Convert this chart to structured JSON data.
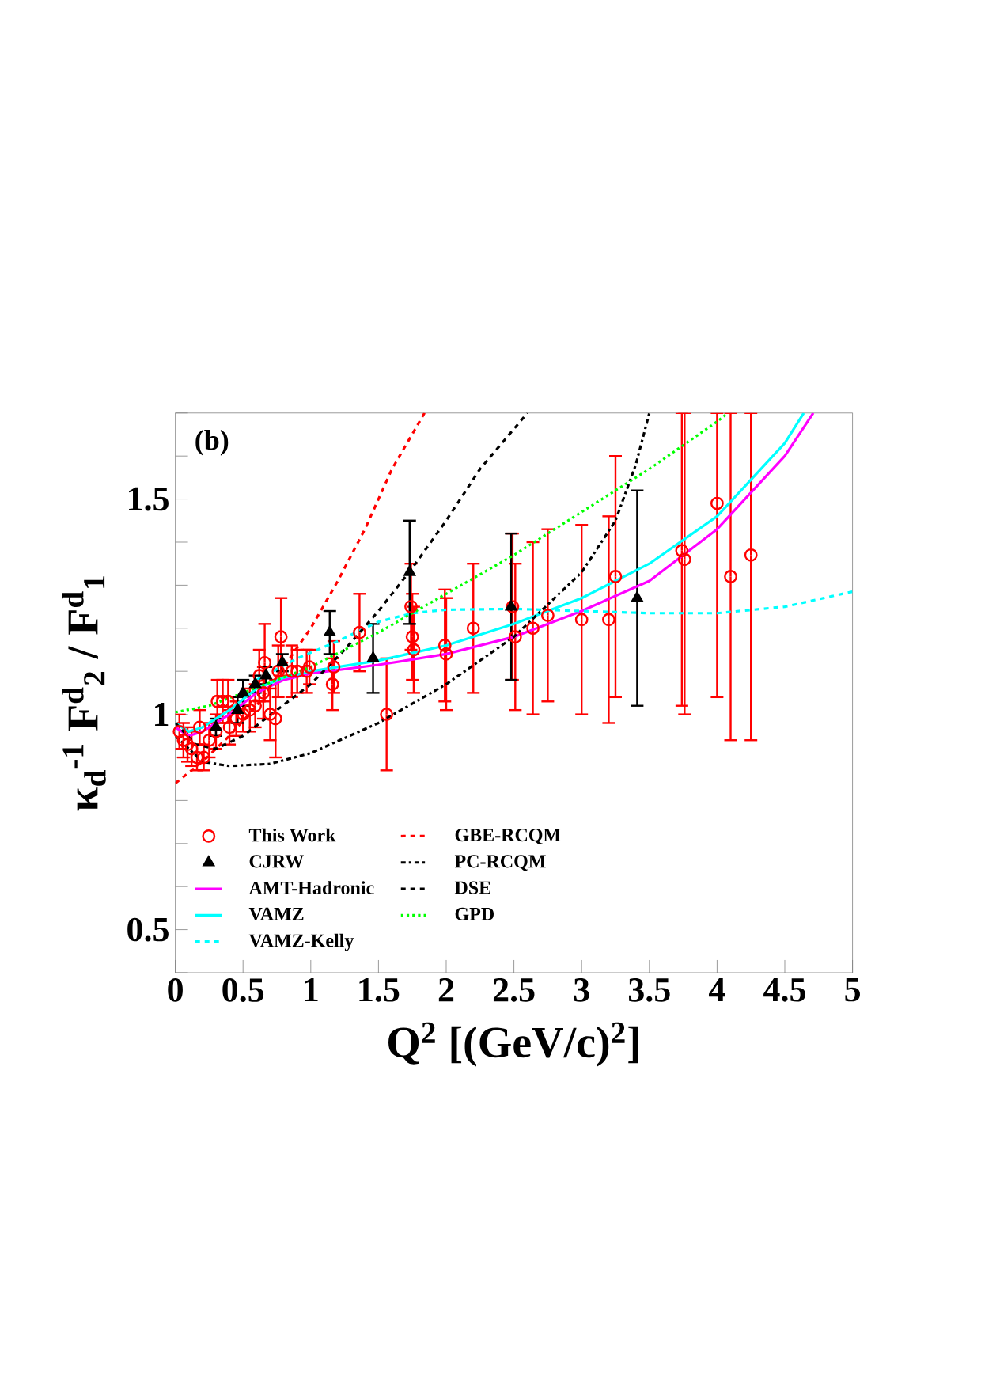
{
  "chart_data": {
    "type": "line",
    "xlabel": "Q$^{2}$ [(GeV/c)$^{2}$]",
    "ylabel": "κ$_{d}$$^{-1}$ F$^{d}$$_{2}$ / F$^{d}$$_{1}$",
    "annotations": [
      "(b)"
    ],
    "xlim": [
      0,
      5
    ],
    "ylim": [
      0.4,
      1.7
    ],
    "xticks": [
      0,
      0.5,
      1,
      1.5,
      2,
      2.5,
      3,
      3.5,
      4,
      4.5,
      5
    ],
    "yticks": [
      {
        "value": 0.4,
        "label": null
      },
      0.5,
      {
        "value": 0.6,
        "label": null
      },
      {
        "value": 0.7,
        "label": null
      },
      {
        "value": 0.8,
        "label": null
      },
      {
        "value": 0.9,
        "label": null
      },
      1,
      {
        "value": 1.1,
        "label": null
      },
      {
        "value": 1.2,
        "label": null
      },
      {
        "value": 1.3,
        "label": null
      },
      {
        "value": 1.4,
        "label": null
      },
      1.5,
      {
        "value": 1.6,
        "label": null
      },
      {
        "value": 1.7,
        "label": null
      }
    ],
    "grid": false,
    "legend": "bottom",
    "series": [
      {
        "name": "This Work",
        "type": "scatter",
        "marker": "circle",
        "color": "#ff0000",
        "x": [
          0.03,
          0.06,
          0.09,
          0.12,
          0.16,
          0.18,
          0.21,
          0.25,
          0.3,
          0.31,
          0.35,
          0.39,
          0.4,
          0.45,
          0.5,
          0.55,
          0.59,
          0.62,
          0.65,
          0.66,
          0.7,
          0.74,
          0.76,
          0.78,
          0.86,
          0.9,
          0.97,
          0.99,
          1.16,
          1.17,
          1.36,
          1.56,
          1.74,
          1.75,
          1.76,
          1.99,
          2.0,
          2.2,
          2.49,
          2.51,
          2.64,
          2.75,
          3.0,
          3.2,
          3.25,
          3.74,
          3.76,
          4.0,
          4.1,
          4.25
        ],
        "values": [
          0.96,
          0.94,
          0.93,
          0.92,
          0.9,
          0.97,
          0.9,
          0.94,
          0.96,
          1.03,
          1.03,
          1.03,
          0.97,
          0.99,
          1.0,
          1.01,
          1.02,
          1.09,
          1.05,
          1.12,
          1.0,
          0.99,
          1.1,
          1.18,
          1.1,
          1.1,
          1.1,
          1.11,
          1.07,
          1.11,
          1.19,
          1.0,
          1.25,
          1.18,
          1.15,
          1.16,
          1.14,
          1.2,
          1.25,
          1.18,
          1.2,
          1.23,
          1.22,
          1.22,
          1.32,
          1.38,
          1.36,
          1.49,
          1.32,
          1.37
        ],
        "errors": [
          0.04,
          0.04,
          0.04,
          0.04,
          0.03,
          0.04,
          0.03,
          0.04,
          0.04,
          0.05,
          0.05,
          0.05,
          0.04,
          0.04,
          0.04,
          0.05,
          0.05,
          0.06,
          0.06,
          0.09,
          0.06,
          0.09,
          0.06,
          0.09,
          0.06,
          0.05,
          0.05,
          0.04,
          0.06,
          0.06,
          0.09,
          0.13,
          0.1,
          0.1,
          0.1,
          0.13,
          0.13,
          0.15,
          0.17,
          0.17,
          0.2,
          0.2,
          0.22,
          0.24,
          0.28,
          [
            1.02,
            1.7
          ],
          [
            1.0,
            1.7
          ],
          [
            1.04,
            1.7
          ],
          [
            0.94,
            1.7
          ],
          [
            0.94,
            1.7
          ]
        ]
      },
      {
        "name": "CJRW",
        "type": "scatter",
        "marker": "triangle",
        "color": "#000000",
        "x": [
          0.3,
          0.46,
          0.5,
          0.59,
          0.67,
          0.79,
          1.14,
          1.46,
          1.73,
          2.48,
          3.41
        ],
        "values": [
          0.97,
          1.01,
          1.05,
          1.07,
          1.09,
          1.12,
          1.19,
          1.13,
          1.33,
          1.25,
          1.27
        ],
        "errors": [
          0.02,
          0.03,
          0.03,
          0.02,
          0.02,
          0.02,
          0.05,
          0.08,
          0.12,
          0.17,
          0.25
        ]
      },
      {
        "name": "AMT-Hadronic",
        "line_style": "solid",
        "color": "#ff00ff",
        "x": [
          0,
          0.1,
          0.2,
          0.4,
          0.6,
          0.8,
          1.0,
          1.5,
          2.0,
          2.5,
          3.0,
          3.5,
          4.0,
          4.5,
          4.71
        ],
        "values": [
          0.97,
          0.95,
          0.96,
          1.0,
          1.05,
          1.08,
          1.095,
          1.115,
          1.14,
          1.18,
          1.24,
          1.31,
          1.43,
          1.6,
          1.7
        ]
      },
      {
        "name": "VAMZ",
        "line_style": "solid",
        "color": "#00ffff",
        "x": [
          0,
          0.1,
          0.2,
          0.4,
          0.6,
          0.8,
          1.0,
          1.5,
          2.0,
          2.5,
          3.0,
          3.5,
          4.0,
          4.5,
          4.64
        ],
        "values": [
          0.98,
          0.96,
          0.97,
          1.01,
          1.06,
          1.085,
          1.1,
          1.125,
          1.16,
          1.21,
          1.27,
          1.35,
          1.46,
          1.63,
          1.7
        ]
      },
      {
        "name": "VAMZ-Kelly",
        "line_style": "dashed",
        "color": "#00ffff",
        "x": [
          0.6,
          0.9,
          1.2,
          1.5,
          1.75,
          2.0,
          2.5,
          3.0,
          3.5,
          4.0,
          4.5,
          5.0
        ],
        "values": [
          1.08,
          1.13,
          1.17,
          1.215,
          1.235,
          1.243,
          1.245,
          1.24,
          1.235,
          1.235,
          1.25,
          1.285
        ]
      },
      {
        "name": "GBE-RCQM",
        "line_style": "dashed",
        "color": "#ff0000",
        "x": [
          0,
          0.2,
          0.4,
          0.6,
          0.8,
          1.0,
          1.2,
          1.4,
          1.6,
          1.84
        ],
        "values": [
          0.84,
          0.89,
          0.95,
          1.02,
          1.11,
          1.2,
          1.31,
          1.43,
          1.57,
          1.7
        ]
      },
      {
        "name": "PC-RCQM",
        "line_style": "dashdotted",
        "color": "#000000",
        "x": [
          0,
          0.2,
          0.4,
          0.7,
          1.0,
          1.5,
          2.0,
          2.5,
          3.0,
          3.25,
          3.4,
          3.5
        ],
        "values": [
          0.95,
          0.89,
          0.88,
          0.885,
          0.91,
          0.98,
          1.07,
          1.18,
          1.33,
          1.45,
          1.58,
          1.7
        ]
      },
      {
        "name": "DSE",
        "line_style": "dashed",
        "color": "#000000",
        "x": [
          0,
          0.15,
          0.3,
          0.5,
          0.75,
          1.0,
          1.25,
          1.5,
          1.75,
          2.0,
          2.25,
          2.6
        ],
        "values": [
          0.98,
          0.93,
          0.92,
          0.95,
          1.01,
          1.07,
          1.15,
          1.24,
          1.34,
          1.45,
          1.57,
          1.7
        ]
      },
      {
        "name": "GPD",
        "line_style": "dotted",
        "color": "#00ff00",
        "x": [
          0,
          0.25,
          0.5,
          1.0,
          1.5,
          2.0,
          2.5,
          3.0,
          3.5,
          4.0,
          4.08
        ],
        "values": [
          1.005,
          1.02,
          1.05,
          1.11,
          1.19,
          1.28,
          1.37,
          1.47,
          1.57,
          1.68,
          1.7
        ]
      }
    ]
  }
}
